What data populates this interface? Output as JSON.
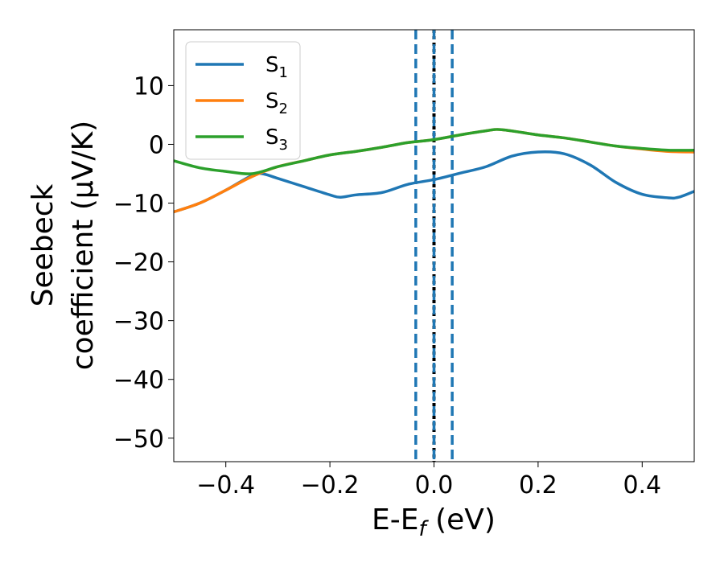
{
  "chart_data": {
    "type": "line",
    "xlabel": {
      "main": "E-E",
      "sub": "f",
      "unit": " (eV)"
    },
    "ylabel": {
      "line1": "Seebeck",
      "line2": "coefficient  (μV/K)"
    },
    "xlim": [
      -0.5,
      0.5
    ],
    "ylim": [
      -54,
      19.5
    ],
    "xticks": [
      -0.4,
      -0.2,
      0.0,
      0.2,
      0.4
    ],
    "xtick_labels": [
      "−0.4",
      "−0.2",
      "0.0",
      "0.2",
      "0.4"
    ],
    "yticks": [
      10,
      0,
      -10,
      -20,
      -30,
      -40,
      -50
    ],
    "ytick_labels": [
      "10",
      "0",
      "−10",
      "−20",
      "−30",
      "−40",
      "−50"
    ],
    "grid": false,
    "legend_position": "upper-left",
    "vlines": [
      {
        "x": 0.0,
        "style": "dotted",
        "color": "#000000"
      },
      {
        "x": -0.035,
        "style": "dashed",
        "color": "#1f77b4"
      },
      {
        "x": 0.0,
        "style": "dashed",
        "color": "#1f77b4"
      },
      {
        "x": 0.035,
        "style": "dashed",
        "color": "#1f77b4"
      }
    ],
    "series": [
      {
        "name": "S",
        "sub": "1",
        "color": "#1f77b4",
        "x": [
          -0.5,
          -0.45,
          -0.4,
          -0.35,
          -0.33,
          -0.3,
          -0.25,
          -0.2,
          -0.18,
          -0.15,
          -0.1,
          -0.05,
          0.0,
          0.05,
          0.1,
          0.15,
          0.2,
          0.25,
          0.3,
          0.35,
          0.4,
          0.45,
          0.47,
          0.5
        ],
        "y": [
          -11.5,
          -10.0,
          -7.8,
          -5.3,
          -5.0,
          -5.8,
          -7.2,
          -8.6,
          -9.0,
          -8.6,
          -8.2,
          -6.8,
          -6.0,
          -4.9,
          -3.8,
          -2.0,
          -1.3,
          -1.6,
          -3.5,
          -6.5,
          -8.5,
          -9.1,
          -9.0,
          -8.0
        ]
      },
      {
        "name": "S",
        "sub": "2",
        "color": "#ff7f0e",
        "x": [
          -0.5,
          -0.45,
          -0.4,
          -0.35,
          -0.3,
          -0.25,
          -0.2,
          -0.15,
          -0.1,
          -0.05,
          0.0,
          0.05,
          0.1,
          0.13,
          0.2,
          0.25,
          0.3,
          0.35,
          0.4,
          0.45,
          0.5
        ],
        "y": [
          -11.5,
          -10.0,
          -7.8,
          -5.5,
          -3.8,
          -2.8,
          -1.8,
          -1.2,
          -0.5,
          0.3,
          0.8,
          1.6,
          2.3,
          2.5,
          1.6,
          1.1,
          0.4,
          -0.3,
          -0.8,
          -1.2,
          -1.3
        ]
      },
      {
        "name": "S",
        "sub": "3",
        "color": "#2ca02c",
        "x": [
          -0.5,
          -0.45,
          -0.4,
          -0.35,
          -0.3,
          -0.25,
          -0.2,
          -0.15,
          -0.1,
          -0.05,
          0.0,
          0.05,
          0.1,
          0.13,
          0.2,
          0.25,
          0.3,
          0.35,
          0.4,
          0.45,
          0.5
        ],
        "y": [
          -2.8,
          -4.0,
          -4.6,
          -5.0,
          -3.8,
          -2.8,
          -1.8,
          -1.2,
          -0.5,
          0.3,
          0.8,
          1.6,
          2.3,
          2.5,
          1.6,
          1.1,
          0.4,
          -0.3,
          -0.7,
          -1.0,
          -1.0
        ]
      }
    ]
  }
}
